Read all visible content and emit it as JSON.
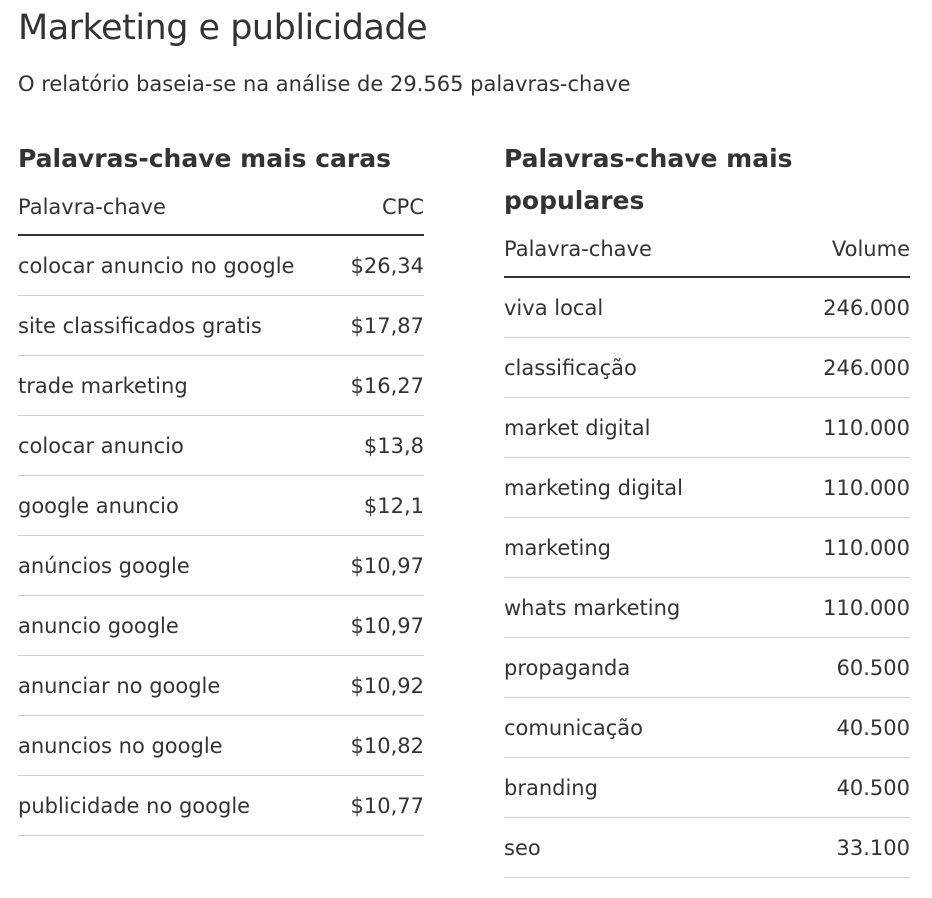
{
  "page": {
    "title": "Marketing e publicidade",
    "subtitle": "O relatório baseia-se na análise de 29.565 palavras-chave"
  },
  "expensive": {
    "title": "Palavras-chave mais caras",
    "col_keyword": "Palavra-chave",
    "col_value": "CPC",
    "rows": [
      {
        "keyword": "colocar anuncio no google",
        "value": "$26,34"
      },
      {
        "keyword": "site classificados gratis",
        "value": "$17,87"
      },
      {
        "keyword": "trade marketing",
        "value": "$16,27"
      },
      {
        "keyword": "colocar anuncio",
        "value": "$13,8"
      },
      {
        "keyword": "google anuncio",
        "value": "$12,1"
      },
      {
        "keyword": "anúncios google",
        "value": "$10,97"
      },
      {
        "keyword": "anuncio google",
        "value": "$10,97"
      },
      {
        "keyword": "anunciar no google",
        "value": "$10,92"
      },
      {
        "keyword": "anuncios no google",
        "value": "$10,82"
      },
      {
        "keyword": "publicidade no google",
        "value": "$10,77"
      }
    ]
  },
  "popular": {
    "title": "Palavras-chave mais populares",
    "col_keyword": "Palavra-chave",
    "col_value": "Volume",
    "rows": [
      {
        "keyword": "viva local",
        "value": "246.000"
      },
      {
        "keyword": "classificação",
        "value": "246.000"
      },
      {
        "keyword": "market digital",
        "value": "110.000"
      },
      {
        "keyword": "marketing digital",
        "value": "110.000"
      },
      {
        "keyword": "marketing",
        "value": "110.000"
      },
      {
        "keyword": "whats marketing",
        "value": "110.000"
      },
      {
        "keyword": "propaganda",
        "value": "60.500"
      },
      {
        "keyword": "comunicação",
        "value": "40.500"
      },
      {
        "keyword": "branding",
        "value": "40.500"
      },
      {
        "keyword": "seo",
        "value": "33.100"
      }
    ]
  }
}
